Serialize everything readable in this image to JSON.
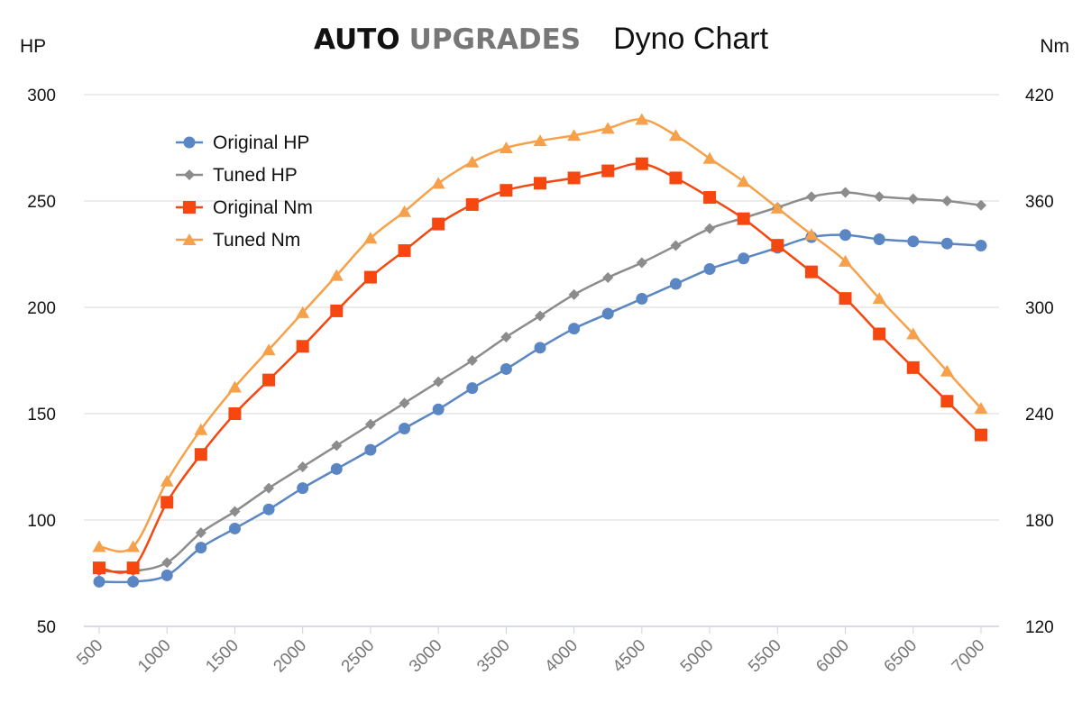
{
  "header": {
    "brand_part1": "AUTO",
    "brand_part2": "UPGRADES",
    "title": "Dyno Chart"
  },
  "chart_data": {
    "type": "line",
    "title": "Dyno Chart",
    "y_left_label": "HP",
    "y_right_label": "Nm",
    "y_left_range": [
      50,
      300
    ],
    "y_left_ticks": [
      50,
      100,
      150,
      200,
      250,
      300
    ],
    "y_right_range": [
      120,
      420
    ],
    "y_right_ticks": [
      120,
      180,
      240,
      300,
      360,
      420
    ],
    "x_range": [
      500,
      7000
    ],
    "x_ticks": [
      500,
      1000,
      1500,
      2000,
      2500,
      3000,
      3500,
      4000,
      4500,
      5000,
      5500,
      6000,
      6500,
      7000
    ],
    "grid": "horizontal",
    "legend_position": "top-left",
    "x": [
      500,
      750,
      1000,
      1250,
      1500,
      1750,
      2000,
      2250,
      2500,
      2750,
      3000,
      3250,
      3500,
      3750,
      4000,
      4250,
      4500,
      4750,
      5000,
      5250,
      5500,
      5750,
      6000,
      6250,
      6500,
      6750,
      7000
    ],
    "series": [
      {
        "name": "Original HP",
        "axis": "left",
        "marker": "circle",
        "color": "#5b86c4",
        "values": [
          71,
          71,
          74,
          87,
          96,
          105,
          115,
          124,
          133,
          143,
          152,
          162,
          171,
          181,
          190,
          197,
          204,
          211,
          218,
          223,
          228,
          233,
          234,
          232,
          231,
          230,
          229
        ]
      },
      {
        "name": "Tuned HP",
        "axis": "left",
        "marker": "diamond",
        "color": "#8c8c8c",
        "values": [
          76,
          76,
          80,
          94,
          104,
          115,
          125,
          135,
          145,
          155,
          165,
          175,
          186,
          196,
          206,
          214,
          221,
          229,
          237,
          242,
          247,
          252,
          254,
          252,
          251,
          250,
          248
        ]
      },
      {
        "name": "Original Nm",
        "axis": "right",
        "marker": "square",
        "color": "#f5470f",
        "values": [
          153,
          153,
          190,
          217,
          240,
          259,
          278,
          298,
          317,
          332,
          347,
          358,
          366,
          370,
          373,
          377,
          381,
          373,
          362,
          350,
          335,
          320,
          305,
          285,
          266,
          247,
          228
        ]
      },
      {
        "name": "Tuned Nm",
        "axis": "right",
        "marker": "triangle",
        "color": "#f7a04a",
        "values": [
          165,
          165,
          202,
          231,
          255,
          276,
          297,
          318,
          339,
          354,
          370,
          382,
          390,
          394,
          397,
          401,
          406,
          397,
          384,
          371,
          356,
          341,
          326,
          305,
          285,
          264,
          243
        ]
      }
    ]
  }
}
